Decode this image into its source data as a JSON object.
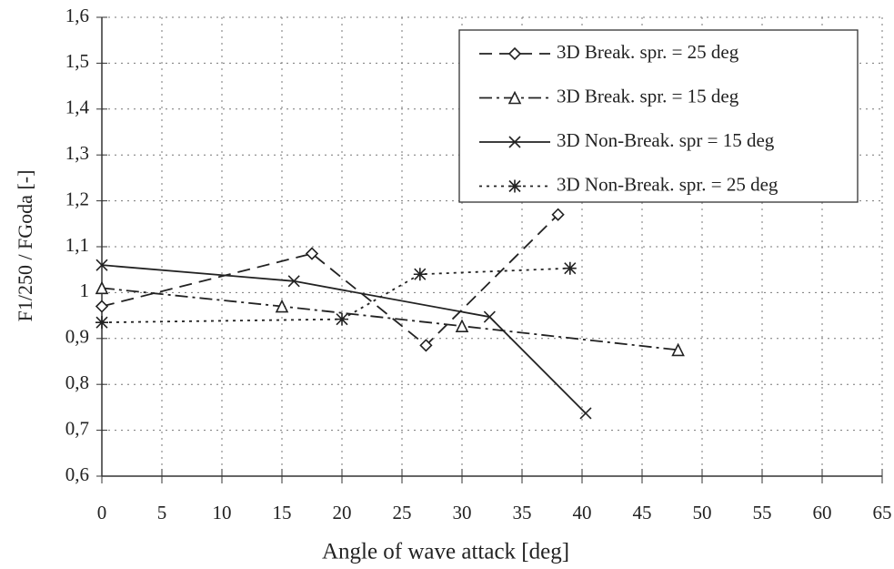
{
  "chart_data": {
    "type": "line",
    "x_label": "Angle of wave attack [deg]",
    "y_label": "F1/250 / FGoda [-]",
    "xlim": [
      0,
      65
    ],
    "xticks": [
      0,
      5,
      10,
      15,
      20,
      25,
      30,
      35,
      40,
      45,
      50,
      55,
      60,
      65
    ],
    "ylim": [
      0.6,
      1.6
    ],
    "yticks": [
      {
        "value": 0.6,
        "label": "0,6"
      },
      {
        "value": 0.7,
        "label": "0,7"
      },
      {
        "value": 0.8,
        "label": "0,8"
      },
      {
        "value": 0.9,
        "label": "0,9"
      },
      1,
      {
        "value": 1.1,
        "label": "1,1"
      },
      {
        "value": 1.2,
        "label": "1,2"
      },
      {
        "value": 1.3,
        "label": "1,3"
      },
      {
        "value": 1.4,
        "label": "1,4"
      },
      {
        "value": 1.5,
        "label": "1,5"
      },
      {
        "value": 1.6,
        "label": "1,6"
      }
    ],
    "grid": true,
    "legend": "upper right",
    "series": [
      {
        "name": "3D Break. spr. = 25 deg",
        "color": "#222222",
        "dash": "14,8",
        "marker": "diamond",
        "x": [
          0,
          17.5,
          27,
          38
        ],
        "values": [
          0.97,
          1.085,
          0.885,
          1.17
        ]
      },
      {
        "name": "3D Break. spr. = 15 deg",
        "color": "#222222",
        "dash": "14,5,3,5",
        "marker": "triangle",
        "x": [
          0,
          15,
          30,
          48
        ],
        "values": [
          1.01,
          0.97,
          0.927,
          0.875
        ]
      },
      {
        "name": "3D Non-Break. spr = 15 deg",
        "color": "#222222",
        "dash": "none",
        "marker": "cross",
        "x": [
          0,
          16,
          32.3,
          40.3
        ],
        "values": [
          1.06,
          1.025,
          0.947,
          0.737
        ]
      },
      {
        "name": "3D Non-Break. spr. = 25 deg",
        "color": "#222222",
        "dash": "3,5",
        "marker": "asterisk",
        "x": [
          0,
          20,
          26.5,
          39
        ],
        "values": [
          0.935,
          0.942,
          1.04,
          1.053
        ]
      }
    ]
  }
}
